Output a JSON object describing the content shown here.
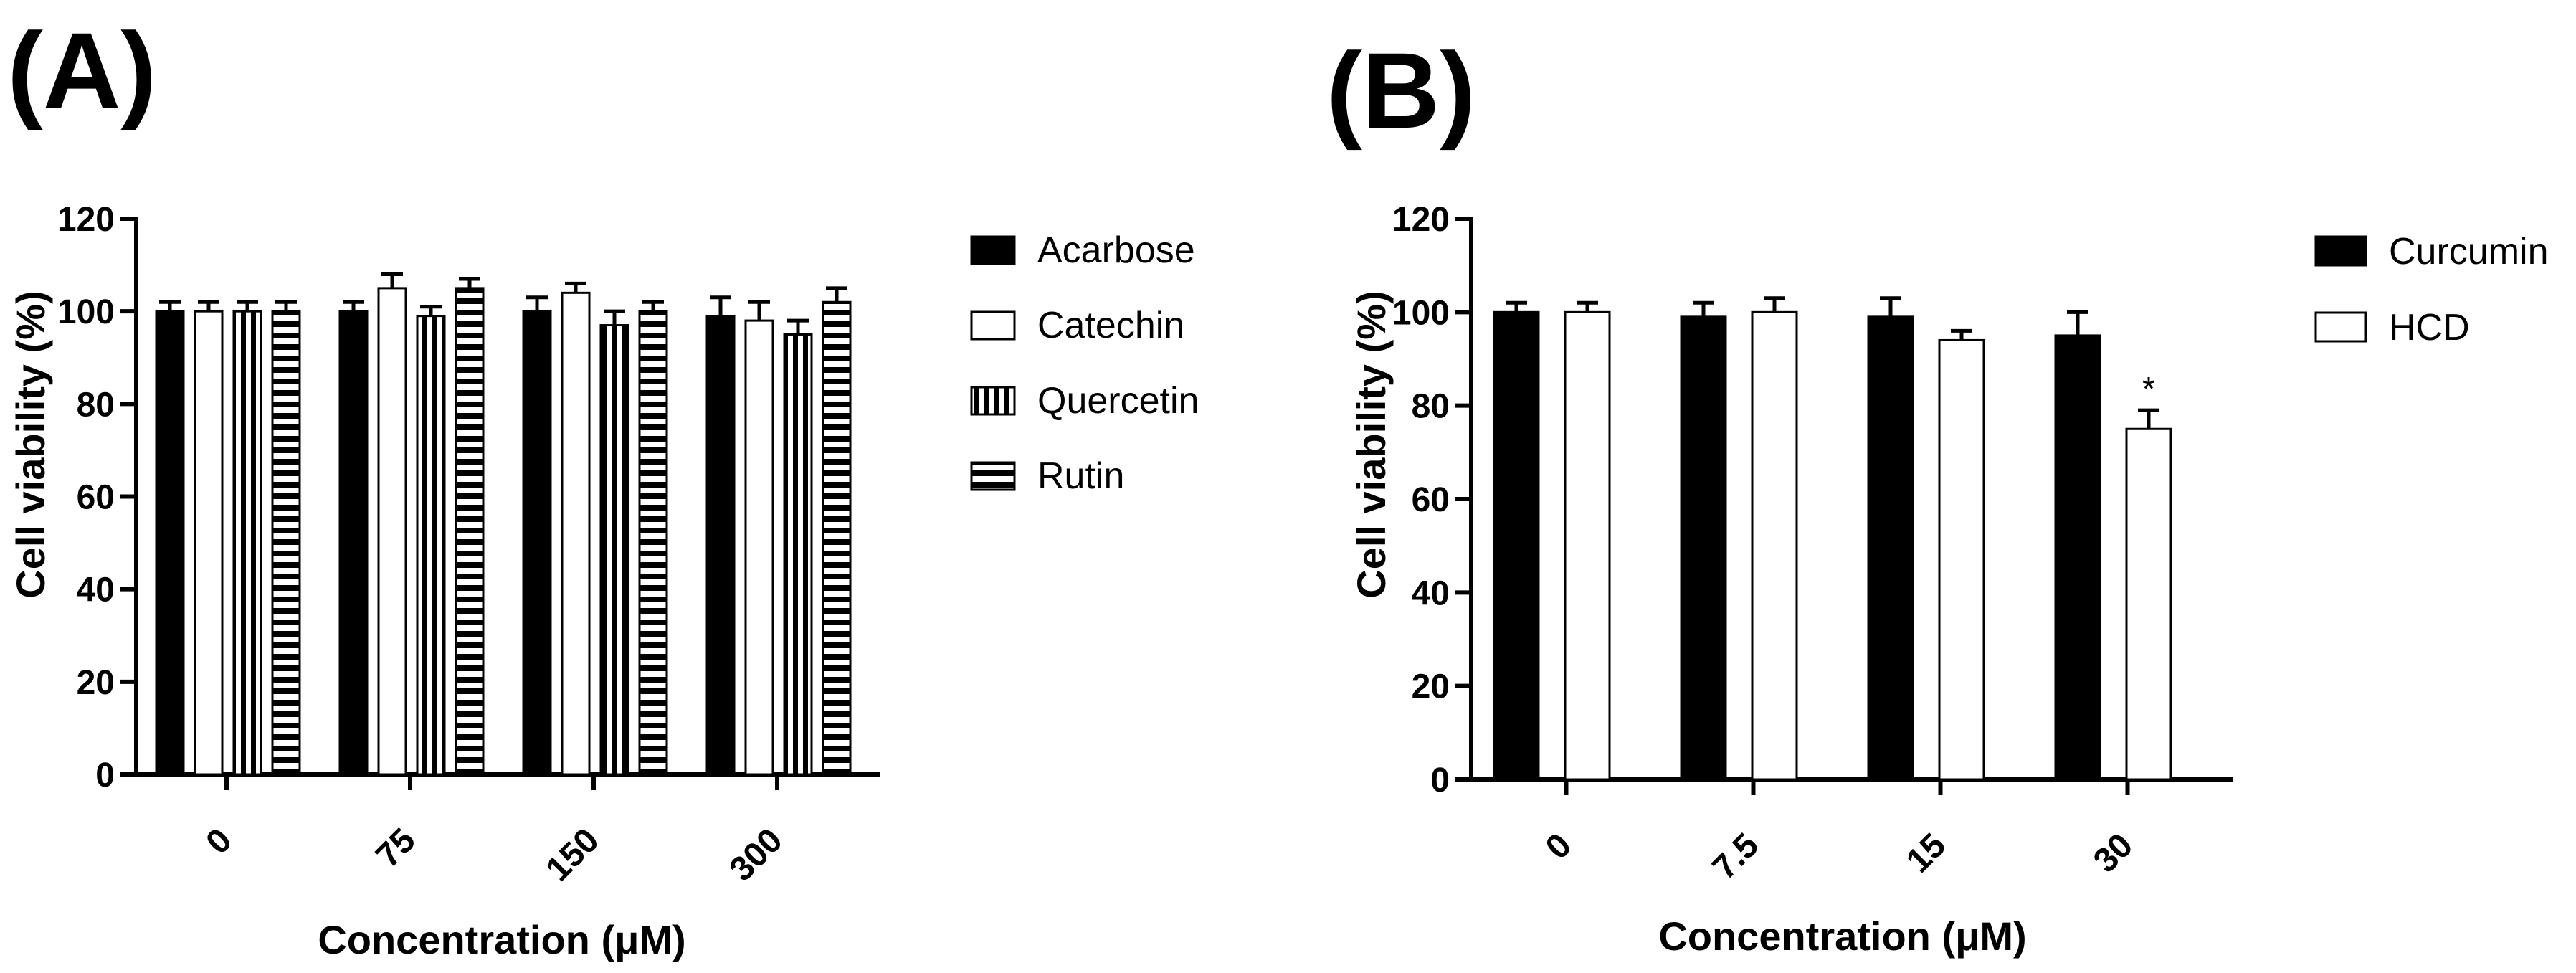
{
  "chart_data": [
    {
      "type": "bar",
      "panel_label": "(A)",
      "xlabel": "Concentration (μM)",
      "ylabel": "Cell viability (%)",
      "ylim": [
        0,
        120
      ],
      "yticks": [
        0,
        20,
        40,
        60,
        80,
        100,
        120
      ],
      "categories": [
        "0",
        "75",
        "150",
        "300"
      ],
      "legend_position": "right",
      "series": [
        {
          "name": "Acarbose",
          "pattern": "solid",
          "values": [
            100,
            100,
            100,
            99
          ],
          "errors": [
            2,
            2,
            3,
            4
          ]
        },
        {
          "name": "Catechin",
          "pattern": "open",
          "values": [
            100,
            105,
            104,
            98
          ],
          "errors": [
            2,
            3,
            2,
            4
          ]
        },
        {
          "name": "Quercetin",
          "pattern": "vertical-stripes",
          "values": [
            100,
            99,
            97,
            95
          ],
          "errors": [
            2,
            2,
            3,
            3
          ]
        },
        {
          "name": "Rutin",
          "pattern": "horizontal-stripes",
          "values": [
            100,
            105,
            100,
            102
          ],
          "errors": [
            2,
            2,
            2,
            3
          ]
        }
      ],
      "annotations": []
    },
    {
      "type": "bar",
      "panel_label": "(B)",
      "xlabel": "Concentration (μM)",
      "ylabel": "Cell viability (%)",
      "ylim": [
        0,
        120
      ],
      "yticks": [
        0,
        20,
        40,
        60,
        80,
        100,
        120
      ],
      "categories": [
        "0",
        "7.5",
        "15",
        "30"
      ],
      "legend_position": "right",
      "series": [
        {
          "name": "Curcumin",
          "pattern": "solid",
          "values": [
            100,
            99,
            99,
            95
          ],
          "errors": [
            2,
            3,
            4,
            5
          ]
        },
        {
          "name": "HCD",
          "pattern": "open",
          "values": [
            100,
            100,
            94,
            75
          ],
          "errors": [
            2,
            3,
            2,
            4
          ]
        }
      ],
      "annotations": [
        {
          "text": "*",
          "category": "30",
          "series": "HCD"
        }
      ]
    }
  ]
}
